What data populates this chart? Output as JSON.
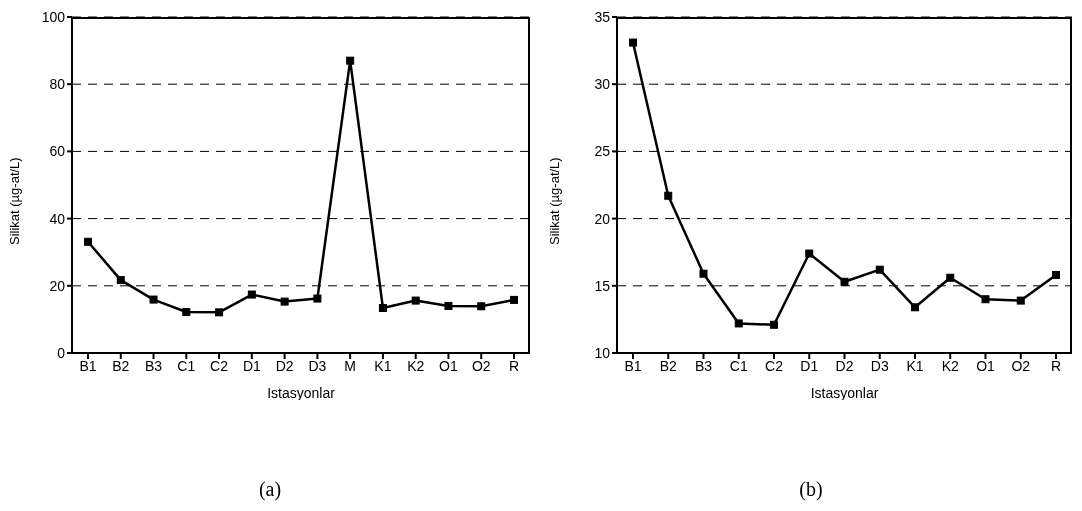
{
  "chart_data": [
    {
      "type": "line",
      "categories": [
        "B1",
        "B2",
        "B3",
        "C1",
        "C2",
        "D1",
        "D2",
        "D3",
        "M",
        "K1",
        "K2",
        "O1",
        "O2",
        "R"
      ],
      "values": [
        33.1,
        21.7,
        15.9,
        12.2,
        12.1,
        17.4,
        15.3,
        16.2,
        87,
        13.4,
        15.6,
        14.0,
        13.9,
        15.8
      ],
      "color": "#000000",
      "xlabel": "Istasyonlar",
      "ylabel": "Silikat (µg-at/L)",
      "ylim": [
        0,
        100
      ],
      "yticks": [
        0,
        20,
        40,
        60,
        80,
        100
      ],
      "grid": "y",
      "marker": "square",
      "line_style": "solid",
      "annotations": [
        "(a)"
      ]
    },
    {
      "type": "line",
      "categories": [
        "B1",
        "B2",
        "B3",
        "C1",
        "C2",
        "D1",
        "D2",
        "D3",
        "K1",
        "K2",
        "O1",
        "O2",
        "R"
      ],
      "values": [
        33.1,
        21.7,
        15.9,
        12.2,
        12.1,
        17.4,
        15.3,
        16.2,
        13.4,
        15.6,
        14.0,
        13.9,
        15.8
      ],
      "color": "#000000",
      "xlabel": "Istasyonlar",
      "ylabel": "Silikat (µg-at/L)",
      "ylim": [
        10,
        35
      ],
      "yticks": [
        10,
        15,
        20,
        25,
        30,
        35
      ],
      "grid": "y",
      "marker": "square",
      "line_style": "solid",
      "annotations": [
        "(b)"
      ]
    }
  ]
}
